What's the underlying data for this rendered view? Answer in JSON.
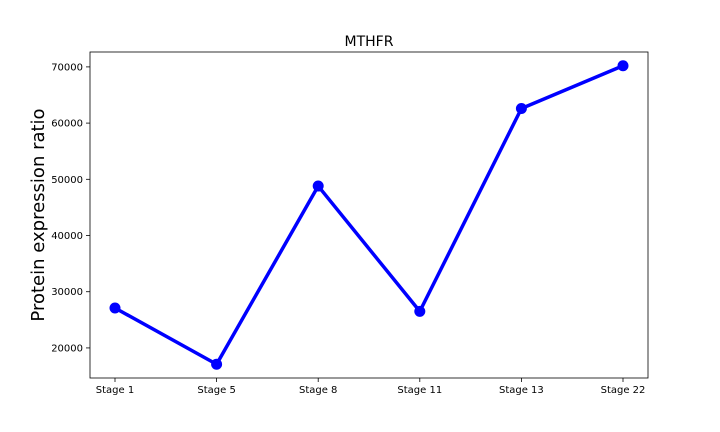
{
  "chart_data": {
    "type": "line",
    "title": "MTHFR",
    "xlabel": "",
    "ylabel": "Protein expression ratio",
    "categories": [
      "Stage 1",
      "Stage 5",
      "Stage 8",
      "Stage 11",
      "Stage 13",
      "Stage 22"
    ],
    "series": [
      {
        "values": [
          27100,
          17100,
          48800,
          26500,
          62600,
          70200
        ],
        "color": "#0000ff",
        "marker": "circle"
      }
    ],
    "yticks": [
      20000,
      30000,
      40000,
      50000,
      60000,
      70000
    ],
    "ytick_labels": [
      "20000",
      "30000",
      "40000",
      "50000",
      "60000",
      "70000"
    ],
    "ylim": [
      14650,
      72650
    ],
    "grid": false,
    "legend": "none"
  }
}
